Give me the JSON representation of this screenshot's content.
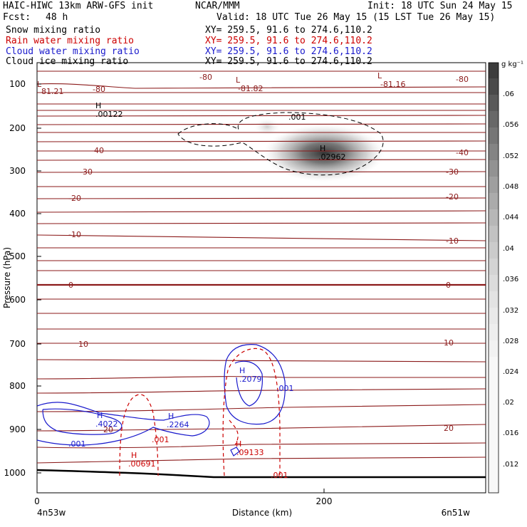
{
  "header": {
    "title_left": "HAIC-HIWC 13km ARW-GFS init",
    "org": "NCAR/MMM",
    "init": "Init: 18 UTC Sun 24 May 15",
    "fcst_label": "Fcst:",
    "fcst_value": "48 h",
    "valid": "Valid: 18 UTC Tue 26 May 15 (15 LST Tue 26 May 15)"
  },
  "fields": [
    {
      "name": "Snow mixing ratio",
      "xy": "XY= 259.5, 91.6 to 274.6,110.2",
      "color": "#000000"
    },
    {
      "name": "Rain water mixing ratio",
      "xy": "XY= 259.5, 91.6 to 274.6,110.2",
      "color": "#cc0000"
    },
    {
      "name": "Cloud water mixing ratio",
      "xy": "XY= 259.5, 91.6 to 274.6,110.2",
      "color": "#1a1acc"
    },
    {
      "name": "Cloud ice mixing ratio",
      "xy": "XY= 259.5, 91.6 to 274.6,110.2",
      "color": "#000000"
    }
  ],
  "axes": {
    "ylabel": "Pressure (hPa)",
    "xlabel": "Distance (km)",
    "y_ticks": [
      "100",
      "200",
      "300",
      "400",
      "500",
      "600",
      "700",
      "800",
      "900",
      "1000"
    ],
    "x_ticks": [
      "0",
      "200"
    ],
    "left_location": "4n53w",
    "right_location": "6n51w"
  },
  "colorbar": {
    "unit": "g kg⁻¹",
    "ticks": [
      ".06",
      ".056",
      ".052",
      ".048",
      ".044",
      ".04",
      ".036",
      ".032",
      ".028",
      ".024",
      ".02",
      ".016",
      ".012"
    ]
  },
  "annotations": [
    {
      "kind": "L",
      "value": "81.21",
      "color": "#8b1a1a"
    },
    {
      "kind": "L",
      "value": "-81.82",
      "color": "#8b1a1a"
    },
    {
      "kind": "L",
      "value": "-81.16",
      "color": "#8b1a1a"
    },
    {
      "kind": "H",
      "value": ".00122",
      "color": "#000000"
    },
    {
      "kind": "H",
      "value": ".02962",
      "color": "#000000"
    },
    {
      "kind": "H",
      "value": ".4022",
      "color": "#1a1acc"
    },
    {
      "kind": "H",
      "value": ".2264",
      "color": "#1a1acc"
    },
    {
      "kind": "H",
      "value": ".2079",
      "color": "#1a1acc"
    },
    {
      "kind": "H",
      "value": ".00691",
      "color": "#cc0000"
    },
    {
      "kind": "H",
      "value": ".09133",
      "color": "#cc0000"
    }
  ],
  "contour_labels": [
    {
      "text": "-80",
      "color": "#8b1a1a"
    },
    {
      "text": "-80",
      "color": "#8b1a1a"
    },
    {
      "text": "-80",
      "color": "#8b1a1a"
    },
    {
      "text": "-40",
      "color": "#8b1a1a"
    },
    {
      "text": "-40",
      "color": "#8b1a1a"
    },
    {
      "text": "-30",
      "color": "#8b1a1a"
    },
    {
      "text": "-30",
      "color": "#8b1a1a"
    },
    {
      "text": "-20",
      "color": "#8b1a1a"
    },
    {
      "text": "-20",
      "color": "#8b1a1a"
    },
    {
      "text": "-10",
      "color": "#8b1a1a"
    },
    {
      "text": "-10",
      "color": "#8b1a1a"
    },
    {
      "text": "0",
      "color": "#8b1a1a"
    },
    {
      "text": "0",
      "color": "#8b1a1a"
    },
    {
      "text": "10",
      "color": "#8b1a1a"
    },
    {
      "text": "10",
      "color": "#8b1a1a"
    },
    {
      "text": "20",
      "color": "#8b1a1a"
    },
    {
      "text": "20",
      "color": "#8b1a1a"
    },
    {
      "text": ".001",
      "color": "#000000"
    },
    {
      "text": ".001",
      "color": "#1a1acc"
    },
    {
      "text": ".001",
      "color": "#1a1acc"
    },
    {
      "text": ".001",
      "color": "#cc0000"
    },
    {
      "text": ".001",
      "color": "#cc0000"
    }
  ],
  "chart_data": {
    "type": "contour",
    "xlabel": "Distance (km)",
    "ylabel": "Pressure (hPa)",
    "xlim": [
      0,
      300
    ],
    "ylim": [
      1050,
      50
    ],
    "y_scale": "log",
    "grid": false,
    "series": [
      {
        "name": "Snow mixing ratio",
        "style": "shaded",
        "max": 0.02962,
        "contour_interval": 0.004
      },
      {
        "name": "Rain water mixing ratio",
        "color": "#cc0000",
        "style": "dashed",
        "max": [
          0.00691,
          0.09133
        ]
      },
      {
        "name": "Cloud water mixing ratio",
        "color": "#1a1acc",
        "style": "solid",
        "max": [
          0.4022,
          0.2264,
          0.2079
        ]
      },
      {
        "name": "Cloud ice mixing ratio",
        "color": "#000000",
        "style": "dashed",
        "max": [
          0.00122,
          0.02962
        ]
      }
    ],
    "temperature_contours": [
      -80,
      -40,
      -30,
      -20,
      -10,
      0,
      10,
      20
    ],
    "temperature_lows": [
      81.21,
      -81.82,
      -81.16
    ]
  }
}
